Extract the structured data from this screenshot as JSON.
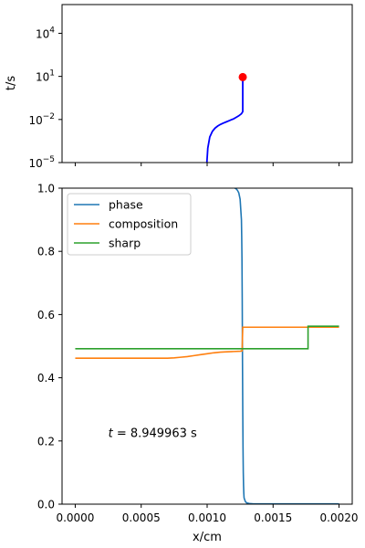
{
  "chart_data": [
    {
      "type": "line",
      "ylabel": "t/s",
      "yscale": "log",
      "xlim": [
        -0.0001,
        0.0021
      ],
      "ylim": [
        1e-05,
        1000000.0
      ],
      "x_tick_values": [
        0.0,
        0.0005,
        0.001,
        0.0015,
        0.002
      ],
      "y_ticks": [
        {
          "value": 1e-05,
          "base": "10",
          "exp": "−5"
        },
        {
          "value": 0.01,
          "base": "10",
          "exp": "−2"
        },
        {
          "value": 10,
          "base": "10",
          "exp": "1"
        },
        {
          "value": 10000,
          "base": "10",
          "exp": "4"
        }
      ],
      "series": [
        {
          "color": "#0000ff",
          "x": [
            0.000998,
            0.001005,
            0.00102,
            0.00104,
            0.00106,
            0.00108,
            0.0011,
            0.00112,
            0.00114,
            0.00116,
            0.00118,
            0.0012,
            0.00122,
            0.00124,
            0.00126,
            0.00127,
            0.00127,
            0.00127
          ],
          "y": [
            1e-05,
            0.0001,
            0.0006,
            0.0015,
            0.0025,
            0.0035,
            0.0045,
            0.0055,
            0.0065,
            0.0078,
            0.0093,
            0.011,
            0.014,
            0.018,
            0.025,
            0.035,
            0.3,
            8.95
          ]
        }
      ],
      "marker": {
        "x": 0.00127,
        "y": 8.949963,
        "color": "#ff0000"
      }
    },
    {
      "type": "line",
      "xlabel": "x/cm",
      "xlim": [
        -0.0001,
        0.0021
      ],
      "ylim": [
        0.0,
        1.0
      ],
      "x_ticks": [
        "0.0000",
        "0.0005",
        "0.0010",
        "0.0015",
        "0.0020"
      ],
      "x_tick_values": [
        0.0,
        0.0005,
        0.001,
        0.0015,
        0.002
      ],
      "y_ticks": [
        "0.0",
        "0.2",
        "0.4",
        "0.6",
        "0.8",
        "1.0"
      ],
      "y_tick_values": [
        0.0,
        0.2,
        0.4,
        0.6,
        0.8,
        1.0
      ],
      "legend_position": "upper-left",
      "annotation": {
        "text": "t = 8.949963 s",
        "x": 0.00025,
        "y": 0.21
      },
      "series": [
        {
          "name": "phase",
          "color": "#1f77b4",
          "x": [
            0.00121,
            0.00122,
            0.00123,
            0.00124,
            0.00125,
            0.00126,
            0.001262,
            0.001264,
            0.001266,
            0.001268,
            0.00127,
            0.001272,
            0.001274,
            0.001276,
            0.001278,
            0.00128,
            0.00129,
            0.0013,
            0.00132,
            0.00135,
            0.0014,
            0.0015,
            0.0017,
            0.002
          ],
          "y": [
            1.0,
            0.998,
            0.993,
            0.985,
            0.965,
            0.9,
            0.85,
            0.78,
            0.65,
            0.45,
            0.3,
            0.18,
            0.1,
            0.06,
            0.035,
            0.02,
            0.008,
            0.004,
            0.002,
            0.001,
            0.001,
            0.001,
            0.001,
            0.001
          ]
        },
        {
          "name": "composition",
          "color": "#ff7f0e",
          "x": [
            0.0,
            0.0007,
            0.00075,
            0.0008,
            0.00085,
            0.0009,
            0.00095,
            0.001,
            0.00105,
            0.0011,
            0.00115,
            0.0012,
            0.00125,
            0.001265,
            0.00127,
            0.002
          ],
          "y": [
            0.462,
            0.462,
            0.463,
            0.465,
            0.467,
            0.47,
            0.473,
            0.476,
            0.479,
            0.481,
            0.482,
            0.483,
            0.484,
            0.485,
            0.56,
            0.56
          ]
        },
        {
          "name": "sharp",
          "color": "#2ca02c",
          "x": [
            0.0,
            0.001765,
            0.001765,
            0.002
          ],
          "y": [
            0.492,
            0.492,
            0.563,
            0.563
          ]
        }
      ]
    }
  ]
}
